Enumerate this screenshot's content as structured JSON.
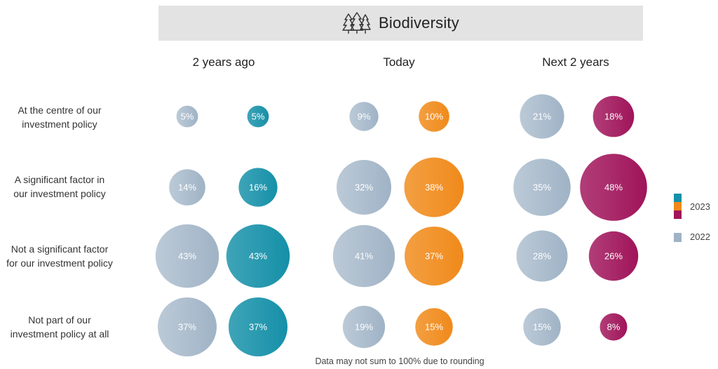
{
  "chart_data": {
    "type": "bubble-matrix",
    "title": "Biodiversity",
    "title_icon": "trees-icon",
    "columns": [
      "2 years ago",
      "Today",
      "Next 2 years"
    ],
    "rows": [
      "At the centre of our investment policy",
      "A significant factor in our investment policy",
      "Not a significant factor for our investment policy",
      "Not part of our investment policy at all"
    ],
    "row_lines": [
      [
        "At the centre of our",
        "investment policy"
      ],
      [
        "A significant factor in",
        "our investment policy"
      ],
      [
        "Not a significant factor",
        "for our investment policy"
      ],
      [
        "Not part of our",
        "investment policy at all"
      ]
    ],
    "series": [
      {
        "name": "2022",
        "values": [
          [
            5,
            9,
            21
          ],
          [
            14,
            32,
            35
          ],
          [
            43,
            41,
            28
          ],
          [
            37,
            19,
            15
          ]
        ],
        "labels": [
          [
            "5%",
            "9%",
            "21%"
          ],
          [
            "14%",
            "32%",
            "35%"
          ],
          [
            "43%",
            "41%",
            "28%"
          ],
          [
            "37%",
            "19%",
            "15%"
          ]
        ]
      },
      {
        "name": "2023",
        "values": [
          [
            5,
            10,
            18
          ],
          [
            16,
            38,
            48
          ],
          [
            43,
            37,
            26
          ],
          [
            37,
            15,
            8
          ]
        ],
        "labels": [
          [
            "5%",
            "10%",
            "18%"
          ],
          [
            "16%",
            "38%",
            "48%"
          ],
          [
            "43%",
            "37%",
            "26%"
          ],
          [
            "37%",
            "15%",
            "8%"
          ]
        ]
      }
    ],
    "legend": [
      {
        "name": "2023",
        "colors": [
          "#1590a8",
          "#f08a1a",
          "#a0145a"
        ]
      },
      {
        "name": "2022",
        "colors": [
          "#9fb3c6"
        ]
      }
    ],
    "column_colors_2023": [
      "#1590a8",
      "#f08a1a",
      "#a0145a"
    ],
    "color_2022": "#9fb3c6",
    "footnote": "Data may not sum to 100% due to rounding"
  }
}
